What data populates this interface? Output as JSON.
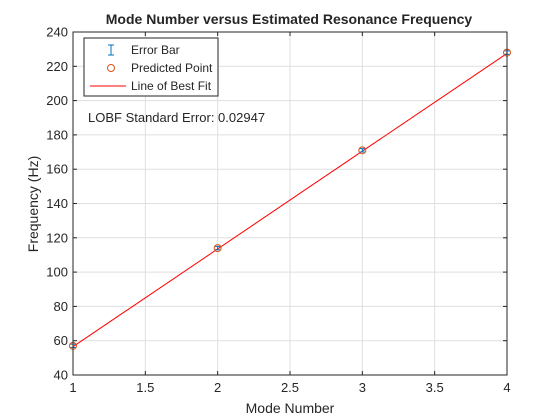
{
  "chart_data": {
    "type": "scatter",
    "title": "Mode Number versus Estimated Resonance Frequency",
    "xlabel": "Mode Number",
    "ylabel": "Frequency (Hz)",
    "xlim": [
      1,
      4
    ],
    "ylim": [
      40,
      240
    ],
    "xticks": [
      1,
      1.5,
      2,
      2.5,
      3,
      3.5,
      4
    ],
    "xtick_labels": [
      "1",
      "1.5",
      "2",
      "2.5",
      "3",
      "3.5",
      "4"
    ],
    "yticks": [
      40,
      60,
      80,
      100,
      120,
      140,
      160,
      180,
      200,
      220,
      240
    ],
    "ytick_labels": [
      "40",
      "60",
      "80",
      "100",
      "120",
      "140",
      "160",
      "180",
      "200",
      "220",
      "240"
    ],
    "grid": true,
    "legend_position": "top-left",
    "annotation": "LOBF Standard Error: 0.02947",
    "series": [
      {
        "name": "Error Bar",
        "kind": "errorbar",
        "color": "#0072BD",
        "x": [
          1,
          2,
          3,
          4
        ],
        "y": [
          57,
          114,
          171,
          228
        ],
        "err": [
          1,
          1,
          1,
          1
        ]
      },
      {
        "name": "Predicted Point",
        "kind": "marker",
        "marker": "circle",
        "color": "#D95319",
        "x": [
          1,
          2,
          3,
          4
        ],
        "y": [
          57,
          114,
          171,
          228
        ]
      },
      {
        "name": "Line of Best Fit",
        "kind": "line",
        "color": "#FF0000",
        "x": [
          1,
          4
        ],
        "y": [
          56.5,
          227.5
        ]
      }
    ]
  }
}
